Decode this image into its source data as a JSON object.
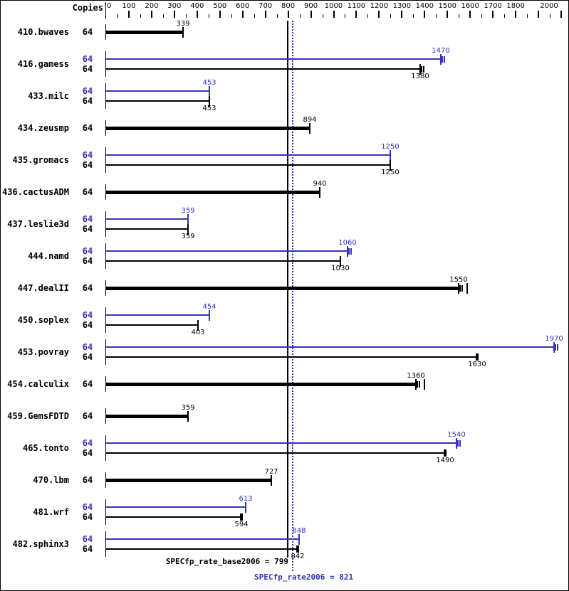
{
  "chart_data": {
    "type": "bar",
    "orientation": "horizontal",
    "copies_header": "Copies",
    "x_axis": {
      "min": 0,
      "max": 2000,
      "minor_step": 50,
      "major_step": 100,
      "labeled_ticks": [
        0,
        100,
        200,
        300,
        400,
        500,
        600,
        700,
        800,
        900,
        1000,
        1100,
        1200,
        1300,
        1400,
        1500,
        1600,
        1700,
        1800,
        2000
      ]
    },
    "colors": {
      "base": "#000000",
      "peak": "#3333bb"
    },
    "reference_lines": [
      {
        "label": "SPECfp_rate_base2006 = 799",
        "value": 799,
        "style": "solid",
        "color": "#000000"
      },
      {
        "label": "SPECfp_rate2006 = 821",
        "value": 821,
        "style": "dotted",
        "color": "#3333bb"
      }
    ],
    "benchmarks": [
      {
        "name": "410.bwaves",
        "bars": [
          {
            "run": "base",
            "copies": 64,
            "value": 339,
            "thick": true,
            "end": "tick"
          }
        ]
      },
      {
        "name": "416.gamess",
        "bars": [
          {
            "run": "peak",
            "copies": 64,
            "value": 1470,
            "end": "double"
          },
          {
            "run": "base",
            "copies": 64,
            "value": 1380,
            "end": "double"
          }
        ]
      },
      {
        "name": "433.milc",
        "bars": [
          {
            "run": "peak",
            "copies": 64,
            "value": 453,
            "end": "tick"
          },
          {
            "run": "base",
            "copies": 64,
            "value": 453,
            "end": "tick"
          }
        ]
      },
      {
        "name": "434.zeusmp",
        "bars": [
          {
            "run": "base",
            "copies": 64,
            "value": 894,
            "thick": true,
            "end": "tick"
          }
        ]
      },
      {
        "name": "435.gromacs",
        "bars": [
          {
            "run": "peak",
            "copies": 64,
            "value": 1250,
            "end": "tick"
          },
          {
            "run": "base",
            "copies": 64,
            "value": 1250,
            "end": "tick"
          }
        ]
      },
      {
        "name": "436.cactusADM",
        "bars": [
          {
            "run": "base",
            "copies": 64,
            "value": 940,
            "thick": true,
            "end": "tick"
          }
        ]
      },
      {
        "name": "437.leslie3d",
        "bars": [
          {
            "run": "peak",
            "copies": 64,
            "value": 359,
            "end": "tick"
          },
          {
            "run": "base",
            "copies": 64,
            "value": 359,
            "end": "tick"
          }
        ]
      },
      {
        "name": "444.namd",
        "bars": [
          {
            "run": "peak",
            "copies": 64,
            "value": 1060,
            "end": "double"
          },
          {
            "run": "base",
            "copies": 64,
            "value": 1030,
            "end": "tick"
          }
        ]
      },
      {
        "name": "447.dealII",
        "bars": [
          {
            "run": "base",
            "copies": 64,
            "value": 1550,
            "thick": true,
            "end": "double+tick"
          }
        ]
      },
      {
        "name": "450.soplex",
        "bars": [
          {
            "run": "peak",
            "copies": 64,
            "value": 454,
            "end": "tick"
          },
          {
            "run": "base",
            "copies": 64,
            "value": 403,
            "end": "tick"
          }
        ]
      },
      {
        "name": "453.povray",
        "bars": [
          {
            "run": "peak",
            "copies": 64,
            "value": 1970,
            "end": "double"
          },
          {
            "run": "base",
            "copies": 64,
            "value": 1630,
            "end": "block"
          }
        ]
      },
      {
        "name": "454.calculix",
        "bars": [
          {
            "run": "base",
            "copies": 64,
            "value": 1360,
            "thick": true,
            "end": "double+tick"
          }
        ]
      },
      {
        "name": "459.GemsFDTD",
        "bars": [
          {
            "run": "base",
            "copies": 64,
            "value": 359,
            "thick": true,
            "end": "tick"
          }
        ]
      },
      {
        "name": "465.tonto",
        "bars": [
          {
            "run": "peak",
            "copies": 64,
            "value": 1540,
            "end": "double"
          },
          {
            "run": "base",
            "copies": 64,
            "value": 1490,
            "end": "block"
          }
        ]
      },
      {
        "name": "470.lbm",
        "bars": [
          {
            "run": "base",
            "copies": 64,
            "value": 727,
            "thick": true,
            "end": "tick"
          }
        ]
      },
      {
        "name": "481.wrf",
        "bars": [
          {
            "run": "peak",
            "copies": 64,
            "value": 613,
            "end": "tick"
          },
          {
            "run": "base",
            "copies": 64,
            "value": 594,
            "end": "block"
          }
        ]
      },
      {
        "name": "482.sphinx3",
        "bars": [
          {
            "run": "peak",
            "copies": 64,
            "value": 848,
            "end": "tick"
          },
          {
            "run": "base",
            "copies": 64,
            "value": 842,
            "end": "block"
          }
        ]
      }
    ]
  },
  "footer": {
    "base_label": "SPECfp_rate_base2006 = 799",
    "peak_label": "SPECfp_rate2006 = 821"
  }
}
